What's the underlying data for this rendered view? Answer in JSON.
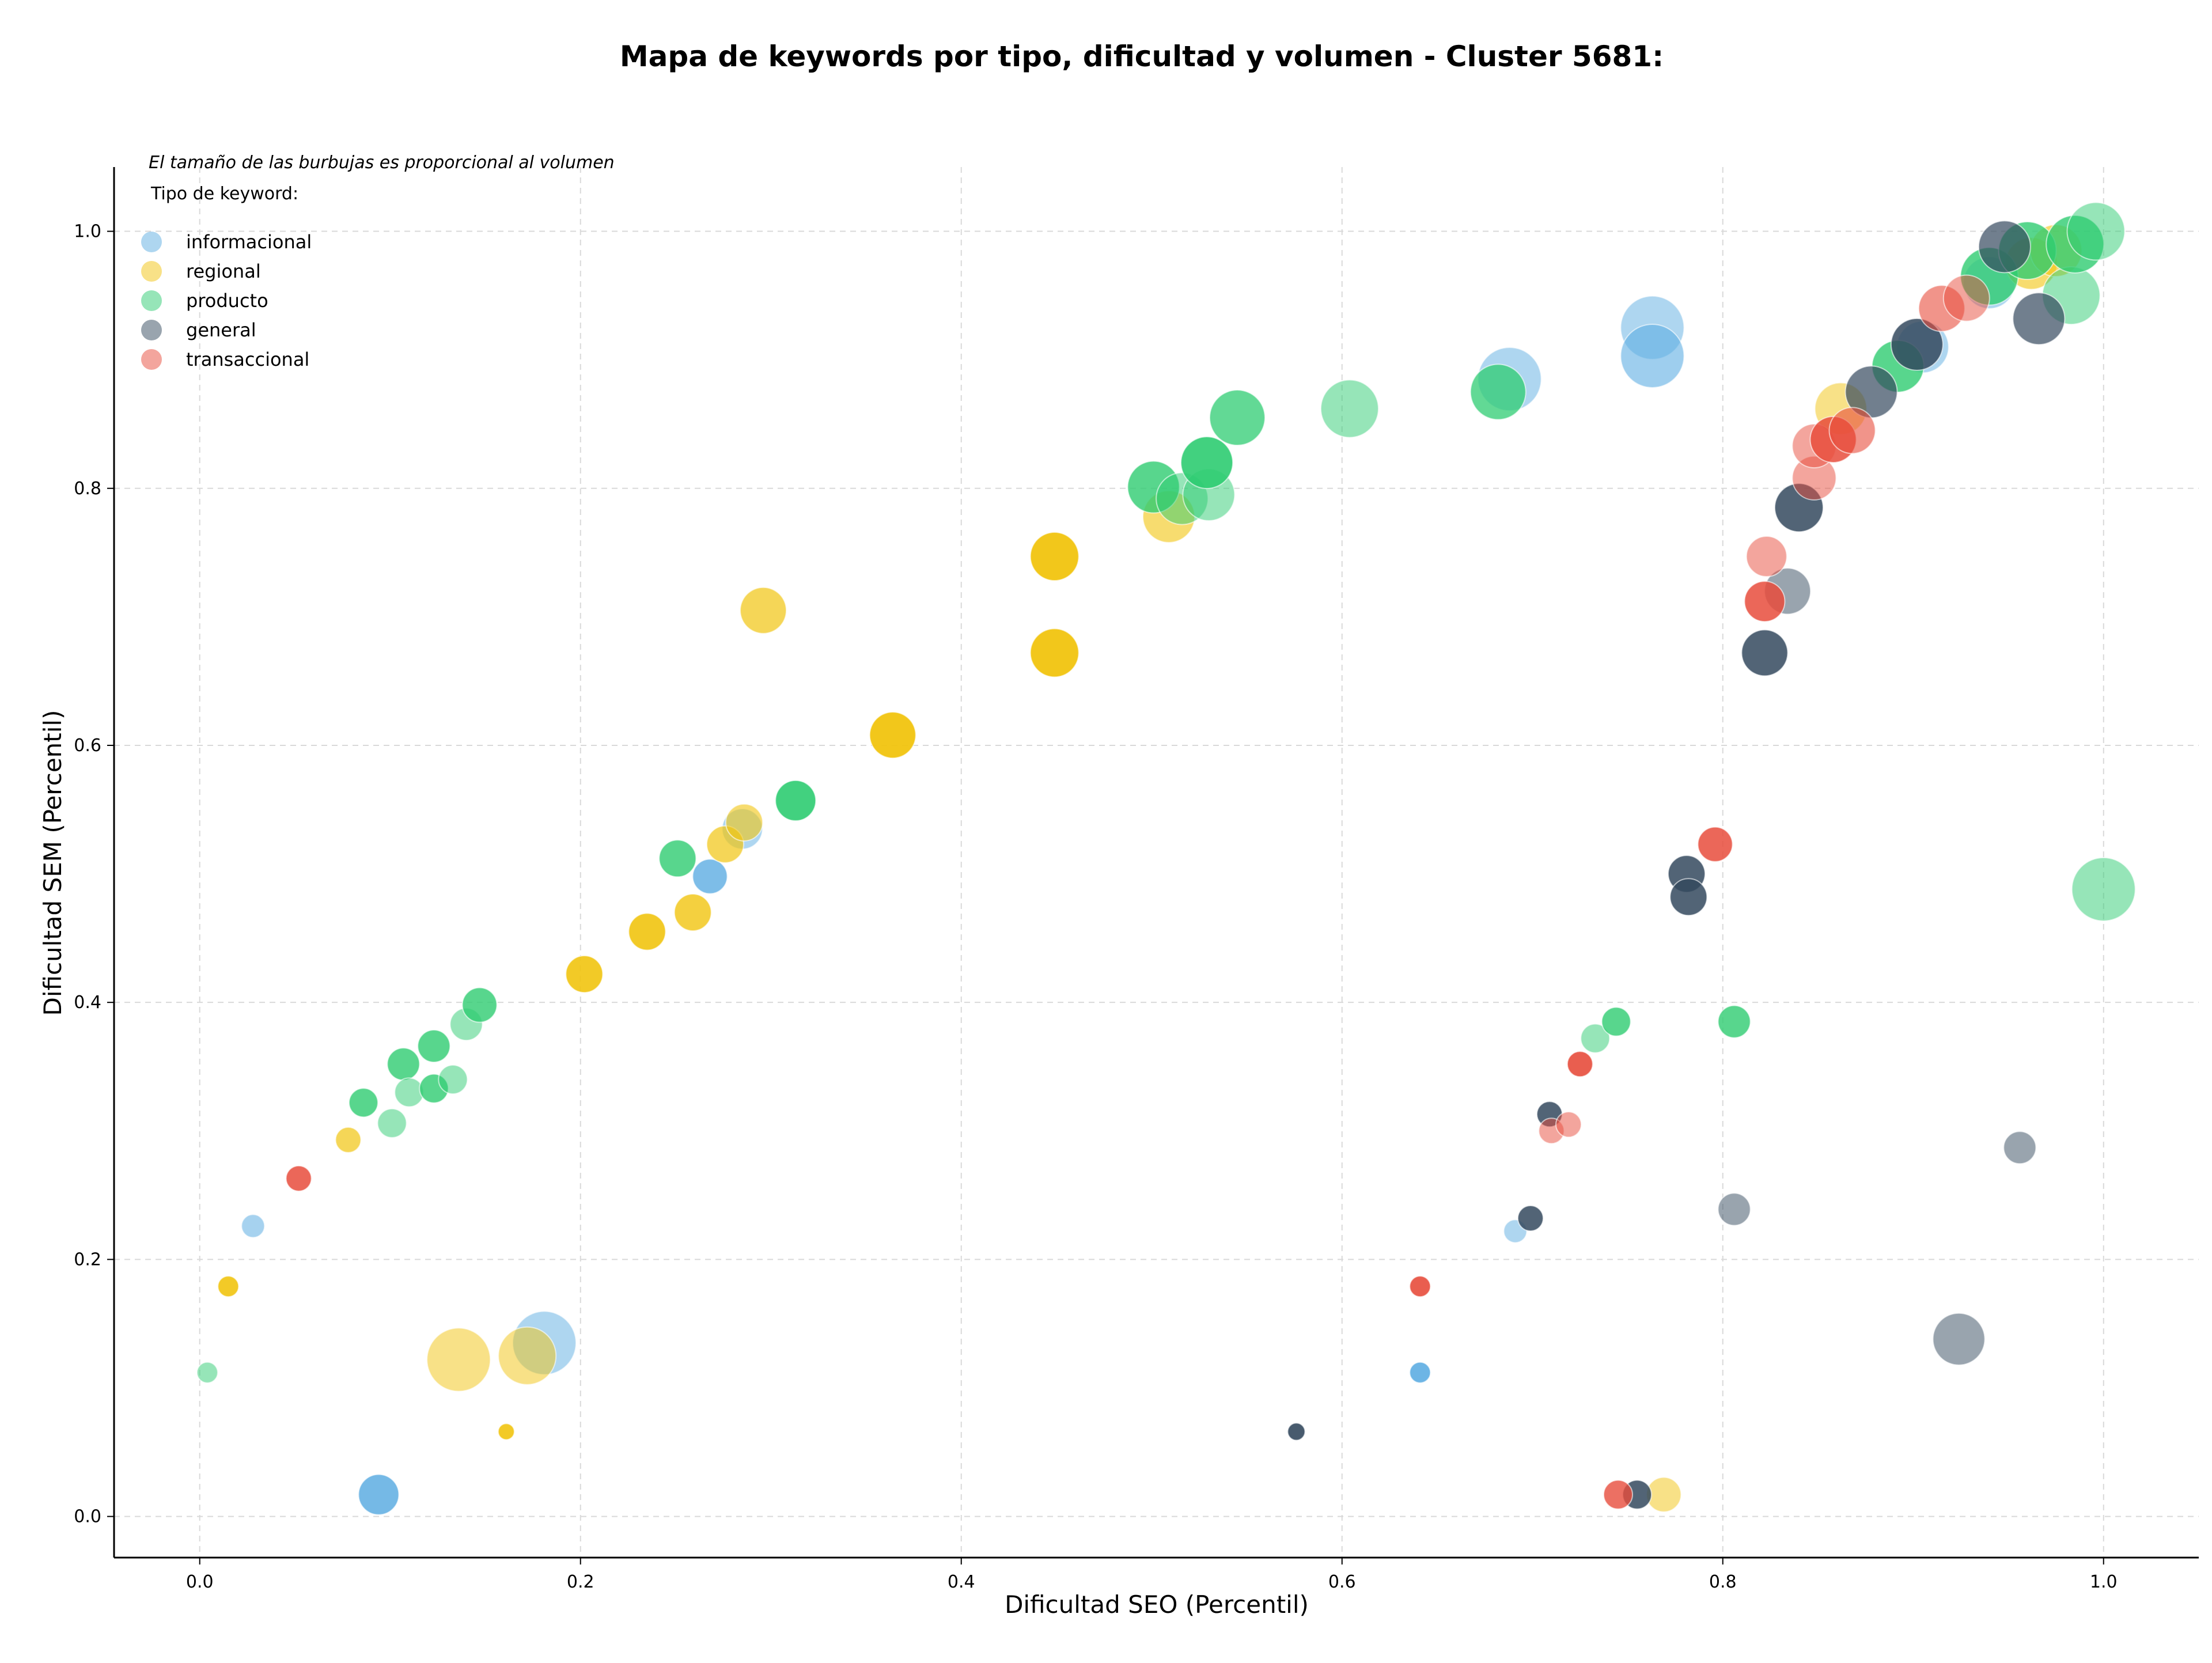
{
  "chart_data": {
    "type": "scatter",
    "title": "Mapa de keywords por tipo, dificultad y volumen - Cluster 5681:",
    "xlabel": "Dificultad SEO (Percentil)",
    "ylabel": "Dificultad SEM (Percentil)",
    "xlim": [
      -0.045,
      1.05
    ],
    "ylim": [
      -0.032,
      1.05
    ],
    "xticks": [
      "0.0",
      "0.2",
      "0.4",
      "0.6",
      "0.8",
      "1.0"
    ],
    "yticks": [
      "0.0",
      "0.2",
      "0.4",
      "0.6",
      "0.8",
      "1.0"
    ],
    "grid": true,
    "size_note": "El tamaño de las burbujas es proporcional al volumen",
    "legend": {
      "title": "Tipo de keyword:",
      "placement": "top-left",
      "items": [
        {
          "name": "informacional",
          "color": "#5dade2"
        },
        {
          "name": "regional",
          "color": "#f1c40f"
        },
        {
          "name": "producto",
          "color": "#2ecc71"
        },
        {
          "name": "general",
          "color": "#34495e"
        },
        {
          "name": "transaccional",
          "color": "#e74c3c"
        }
      ]
    },
    "series": [
      {
        "name": "informacional",
        "color": "#5dade2",
        "points": [
          {
            "x": 0.028,
            "y": 0.226,
            "size": 20,
            "alpha": 0.55
          },
          {
            "x": 0.094,
            "y": 0.017,
            "size": 35,
            "alpha": 0.85
          },
          {
            "x": 0.181,
            "y": 0.135,
            "size": 55,
            "alpha": 0.5
          },
          {
            "x": 0.268,
            "y": 0.498,
            "size": 30,
            "alpha": 0.8
          },
          {
            "x": 0.285,
            "y": 0.535,
            "size": 35,
            "alpha": 0.5
          },
          {
            "x": 0.641,
            "y": 0.112,
            "size": 18,
            "alpha": 0.9
          },
          {
            "x": 0.691,
            "y": 0.222,
            "size": 20,
            "alpha": 0.5
          },
          {
            "x": 0.688,
            "y": 0.885,
            "size": 55,
            "alpha": 0.5
          },
          {
            "x": 0.763,
            "y": 0.925,
            "size": 55,
            "alpha": 0.5
          },
          {
            "x": 0.763,
            "y": 0.903,
            "size": 55,
            "alpha": 0.6
          },
          {
            "x": 0.905,
            "y": 0.91,
            "size": 45,
            "alpha": 0.5
          },
          {
            "x": 0.94,
            "y": 0.96,
            "size": 45,
            "alpha": 0.5
          }
        ]
      },
      {
        "name": "regional",
        "color": "#f1c40f",
        "points": [
          {
            "x": 0.015,
            "y": 0.179,
            "size": 18,
            "alpha": 0.9
          },
          {
            "x": 0.078,
            "y": 0.293,
            "size": 22,
            "alpha": 0.7
          },
          {
            "x": 0.136,
            "y": 0.122,
            "size": 55,
            "alpha": 0.5
          },
          {
            "x": 0.161,
            "y": 0.066,
            "size": 14,
            "alpha": 0.9
          },
          {
            "x": 0.172,
            "y": 0.125,
            "size": 50,
            "alpha": 0.5
          },
          {
            "x": 0.202,
            "y": 0.422,
            "size": 32,
            "alpha": 0.9
          },
          {
            "x": 0.235,
            "y": 0.455,
            "size": 32,
            "alpha": 0.9
          },
          {
            "x": 0.259,
            "y": 0.47,
            "size": 32,
            "alpha": 0.8
          },
          {
            "x": 0.276,
            "y": 0.523,
            "size": 32,
            "alpha": 0.7
          },
          {
            "x": 0.286,
            "y": 0.54,
            "size": 32,
            "alpha": 0.6
          },
          {
            "x": 0.296,
            "y": 0.705,
            "size": 40,
            "alpha": 0.7
          },
          {
            "x": 0.364,
            "y": 0.608,
            "size": 40,
            "alpha": 0.95
          },
          {
            "x": 0.449,
            "y": 0.747,
            "size": 42,
            "alpha": 0.95
          },
          {
            "x": 0.449,
            "y": 0.672,
            "size": 42,
            "alpha": 0.95
          },
          {
            "x": 0.509,
            "y": 0.778,
            "size": 45,
            "alpha": 0.6
          },
          {
            "x": 0.769,
            "y": 0.017,
            "size": 30,
            "alpha": 0.5
          },
          {
            "x": 0.862,
            "y": 0.862,
            "size": 45,
            "alpha": 0.5
          },
          {
            "x": 0.962,
            "y": 0.975,
            "size": 45,
            "alpha": 0.6
          },
          {
            "x": 0.975,
            "y": 0.985,
            "size": 45,
            "alpha": 0.6
          }
        ]
      },
      {
        "name": "producto",
        "color": "#2ecc71",
        "points": [
          {
            "x": 0.004,
            "y": 0.112,
            "size": 18,
            "alpha": 0.5
          },
          {
            "x": 0.086,
            "y": 0.322,
            "size": 25,
            "alpha": 0.8
          },
          {
            "x": 0.101,
            "y": 0.306,
            "size": 25,
            "alpha": 0.5
          },
          {
            "x": 0.107,
            "y": 0.352,
            "size": 28,
            "alpha": 0.8
          },
          {
            "x": 0.11,
            "y": 0.33,
            "size": 25,
            "alpha": 0.5
          },
          {
            "x": 0.123,
            "y": 0.366,
            "size": 28,
            "alpha": 0.8
          },
          {
            "x": 0.123,
            "y": 0.333,
            "size": 25,
            "alpha": 0.8
          },
          {
            "x": 0.133,
            "y": 0.34,
            "size": 25,
            "alpha": 0.5
          },
          {
            "x": 0.14,
            "y": 0.383,
            "size": 28,
            "alpha": 0.5
          },
          {
            "x": 0.147,
            "y": 0.398,
            "size": 30,
            "alpha": 0.8
          },
          {
            "x": 0.251,
            "y": 0.512,
            "size": 32,
            "alpha": 0.8
          },
          {
            "x": 0.313,
            "y": 0.557,
            "size": 35,
            "alpha": 0.9
          },
          {
            "x": 0.501,
            "y": 0.801,
            "size": 45,
            "alpha": 0.8
          },
          {
            "x": 0.516,
            "y": 0.792,
            "size": 45,
            "alpha": 0.5
          },
          {
            "x": 0.53,
            "y": 0.795,
            "size": 45,
            "alpha": 0.5
          },
          {
            "x": 0.529,
            "y": 0.82,
            "size": 45,
            "alpha": 0.9
          },
          {
            "x": 0.545,
            "y": 0.855,
            "size": 48,
            "alpha": 0.75
          },
          {
            "x": 0.604,
            "y": 0.862,
            "size": 50,
            "alpha": 0.5
          },
          {
            "x": 0.682,
            "y": 0.875,
            "size": 48,
            "alpha": 0.75
          },
          {
            "x": 0.733,
            "y": 0.372,
            "size": 25,
            "alpha": 0.5
          },
          {
            "x": 0.744,
            "y": 0.385,
            "size": 25,
            "alpha": 0.8
          },
          {
            "x": 0.806,
            "y": 0.385,
            "size": 28,
            "alpha": 0.8
          },
          {
            "x": 0.892,
            "y": 0.895,
            "size": 45,
            "alpha": 0.8
          },
          {
            "x": 0.94,
            "y": 0.965,
            "size": 50,
            "alpha": 0.8
          },
          {
            "x": 0.96,
            "y": 0.985,
            "size": 50,
            "alpha": 0.8
          },
          {
            "x": 0.983,
            "y": 0.95,
            "size": 50,
            "alpha": 0.5
          },
          {
            "x": 0.985,
            "y": 0.99,
            "size": 50,
            "alpha": 0.8
          },
          {
            "x": 0.996,
            "y": 1.0,
            "size": 50,
            "alpha": 0.5
          },
          {
            "x": 1.0,
            "y": 0.488,
            "size": 55,
            "alpha": 0.5
          }
        ]
      },
      {
        "name": "general",
        "color": "#34495e",
        "points": [
          {
            "x": 0.576,
            "y": 0.066,
            "size": 15,
            "alpha": 0.9
          },
          {
            "x": 0.699,
            "y": 0.232,
            "size": 22,
            "alpha": 0.85
          },
          {
            "x": 0.709,
            "y": 0.313,
            "size": 22,
            "alpha": 0.85
          },
          {
            "x": 0.755,
            "y": 0.017,
            "size": 25,
            "alpha": 0.85
          },
          {
            "x": 0.781,
            "y": 0.5,
            "size": 32,
            "alpha": 0.85
          },
          {
            "x": 0.782,
            "y": 0.482,
            "size": 32,
            "alpha": 0.85
          },
          {
            "x": 0.806,
            "y": 0.239,
            "size": 28,
            "alpha": 0.5
          },
          {
            "x": 0.822,
            "y": 0.672,
            "size": 40,
            "alpha": 0.85
          },
          {
            "x": 0.834,
            "y": 0.72,
            "size": 40,
            "alpha": 0.5
          },
          {
            "x": 0.84,
            "y": 0.785,
            "size": 42,
            "alpha": 0.85
          },
          {
            "x": 0.878,
            "y": 0.875,
            "size": 45,
            "alpha": 0.7
          },
          {
            "x": 0.902,
            "y": 0.912,
            "size": 45,
            "alpha": 0.85
          },
          {
            "x": 0.924,
            "y": 0.138,
            "size": 45,
            "alpha": 0.5
          },
          {
            "x": 0.948,
            "y": 0.988,
            "size": 45,
            "alpha": 0.7
          },
          {
            "x": 0.956,
            "y": 0.287,
            "size": 28,
            "alpha": 0.5
          },
          {
            "x": 0.966,
            "y": 0.932,
            "size": 45,
            "alpha": 0.7
          }
        ]
      },
      {
        "name": "transaccional",
        "color": "#e74c3c",
        "points": [
          {
            "x": 0.052,
            "y": 0.263,
            "size": 22,
            "alpha": 0.85
          },
          {
            "x": 0.641,
            "y": 0.179,
            "size": 18,
            "alpha": 0.9
          },
          {
            "x": 0.71,
            "y": 0.3,
            "size": 22,
            "alpha": 0.5
          },
          {
            "x": 0.719,
            "y": 0.305,
            "size": 22,
            "alpha": 0.5
          },
          {
            "x": 0.725,
            "y": 0.352,
            "size": 22,
            "alpha": 0.9
          },
          {
            "x": 0.745,
            "y": 0.017,
            "size": 25,
            "alpha": 0.8
          },
          {
            "x": 0.796,
            "y": 0.523,
            "size": 30,
            "alpha": 0.85
          },
          {
            "x": 0.822,
            "y": 0.712,
            "size": 35,
            "alpha": 0.85
          },
          {
            "x": 0.823,
            "y": 0.747,
            "size": 35,
            "alpha": 0.5
          },
          {
            "x": 0.848,
            "y": 0.808,
            "size": 38,
            "alpha": 0.5
          },
          {
            "x": 0.848,
            "y": 0.833,
            "size": 38,
            "alpha": 0.5
          },
          {
            "x": 0.858,
            "y": 0.838,
            "size": 40,
            "alpha": 0.85
          },
          {
            "x": 0.868,
            "y": 0.845,
            "size": 40,
            "alpha": 0.6
          },
          {
            "x": 0.915,
            "y": 0.94,
            "size": 40,
            "alpha": 0.6
          },
          {
            "x": 0.928,
            "y": 0.948,
            "size": 40,
            "alpha": 0.5
          }
        ]
      }
    ]
  }
}
